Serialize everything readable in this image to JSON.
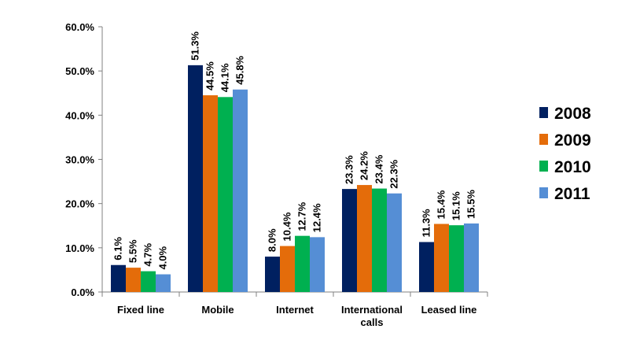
{
  "chart_data": {
    "type": "bar",
    "title": "",
    "xlabel": "",
    "ylabel": "",
    "ylim": [
      0,
      60
    ],
    "y_ticks": [
      "0.0%",
      "10.0%",
      "20.0%",
      "30.0%",
      "40.0%",
      "50.0%",
      "60.0%"
    ],
    "y_tick_values": [
      0,
      10,
      20,
      30,
      40,
      50,
      60
    ],
    "categories": [
      [
        "Fixed line"
      ],
      [
        "Mobile"
      ],
      [
        "Internet"
      ],
      [
        "International",
        "calls"
      ],
      [
        "Leased line"
      ]
    ],
    "legend_position": "right",
    "grid": false,
    "series": [
      {
        "name": "2008",
        "color": "#002060",
        "values": [
          6.1,
          51.3,
          8.0,
          23.3,
          11.3
        ],
        "labels": [
          "6.1%",
          "51.3%",
          "8.0%",
          "23.3%",
          "11.3%"
        ]
      },
      {
        "name": "2009",
        "color": "#e46c0a",
        "values": [
          5.5,
          44.5,
          10.4,
          24.2,
          15.4
        ],
        "labels": [
          "5.5%",
          "44.5%",
          "10.4%",
          "24.2%",
          "15.4%"
        ]
      },
      {
        "name": "2010",
        "color": "#00b050",
        "values": [
          4.7,
          44.1,
          12.7,
          23.4,
          15.1
        ],
        "labels": [
          "4.7%",
          "44.1%",
          "12.7%",
          "23.4%",
          "15.1%"
        ]
      },
      {
        "name": "2011",
        "color": "#558ed5",
        "values": [
          4.0,
          45.8,
          12.4,
          22.3,
          15.5
        ],
        "labels": [
          "4.0%",
          "45.8%",
          "12.4%",
          "22.3%",
          "15.5%"
        ]
      }
    ]
  }
}
